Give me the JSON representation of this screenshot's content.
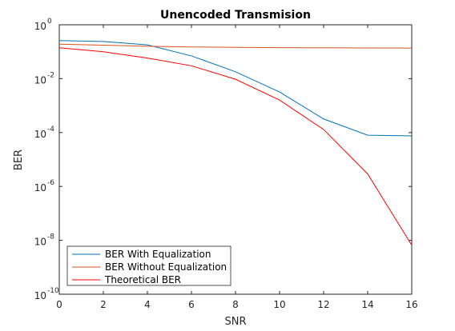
{
  "chart_data": {
    "type": "line",
    "title": "Unencoded Transmision",
    "xlabel": "SNR",
    "ylabel": "BER",
    "xlim": [
      0,
      16
    ],
    "ylim_log10": [
      -10,
      0
    ],
    "yscale": "log",
    "grid": false,
    "legend_location": "bottom-left",
    "x_ticks": [
      "0",
      "2",
      "4",
      "6",
      "8",
      "10",
      "12",
      "14",
      "16"
    ],
    "y_ticks": [
      {
        "base": "10",
        "exp": "0"
      },
      {
        "base": "10",
        "exp": "-2"
      },
      {
        "base": "10",
        "exp": "-4"
      },
      {
        "base": "10",
        "exp": "-6"
      },
      {
        "base": "10",
        "exp": "-8"
      },
      {
        "base": "10",
        "exp": "-10"
      }
    ],
    "x": [
      0,
      2,
      4,
      6,
      8,
      10,
      12,
      14,
      16
    ],
    "series": [
      {
        "name": "BER With Equalization",
        "color": "#0072BD",
        "values": [
          0.26,
          0.24,
          0.18,
          0.07,
          0.018,
          0.0032,
          0.00032,
          8e-05,
          7.5e-05
        ]
      },
      {
        "name": "BER Without Equalization",
        "color": "#D95319",
        "values": [
          0.19,
          0.175,
          0.16,
          0.15,
          0.145,
          0.142,
          0.14,
          0.138,
          0.137
        ]
      },
      {
        "name": "Theoretical BER",
        "color": "#FF0000",
        "values": [
          0.14,
          0.1,
          0.058,
          0.03,
          0.0095,
          0.0016,
          0.00013,
          2.9e-06,
          6.6e-09
        ]
      }
    ]
  }
}
